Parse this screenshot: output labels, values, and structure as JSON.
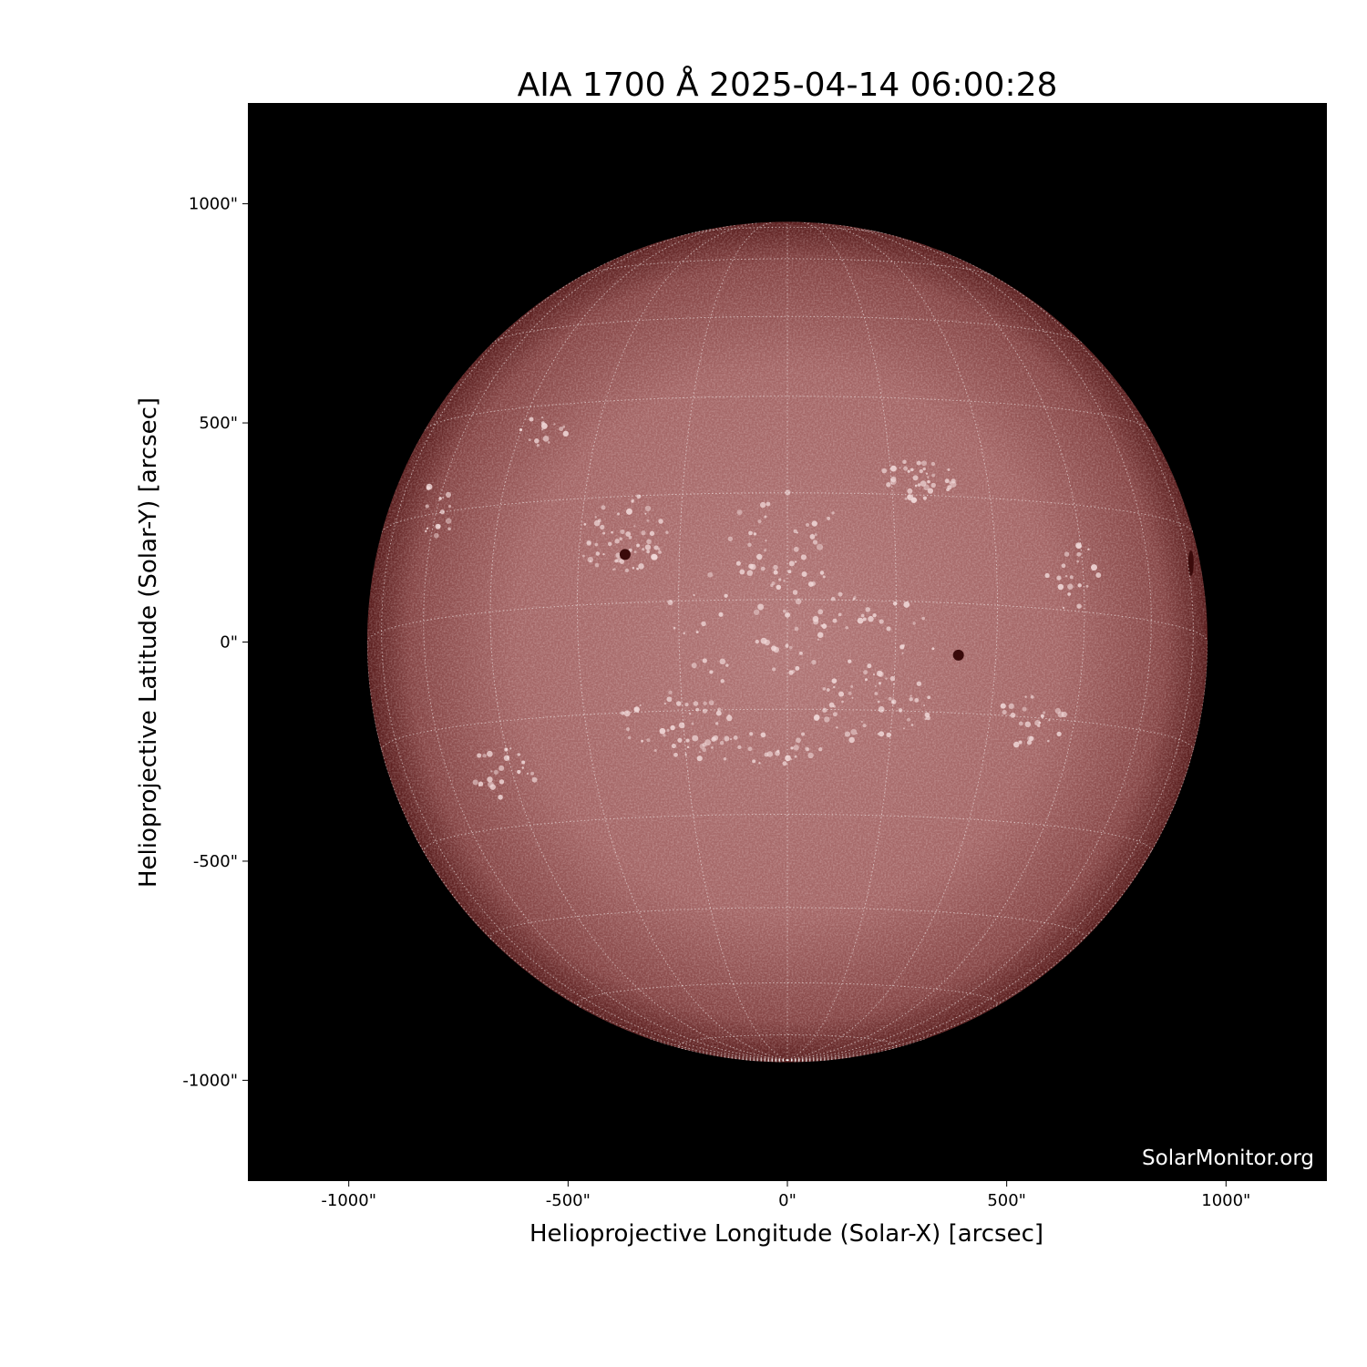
{
  "chart_data": {
    "type": "image",
    "title": "AIA 1700 Å 2025-04-14 06:00:28",
    "xlabel": "Helioprojective Longitude (Solar-X) [arcsec]",
    "ylabel": "Helioprojective Latitude (Solar-Y) [arcsec]",
    "xlim": [
      -1230,
      1230
    ],
    "ylim": [
      -1230,
      1230
    ],
    "xticks": [
      {
        "value": -1000,
        "label": "-1000\""
      },
      {
        "value": -500,
        "label": "-500\""
      },
      {
        "value": 0,
        "label": "0\""
      },
      {
        "value": 500,
        "label": "500\""
      },
      {
        "value": 1000,
        "label": "1000\""
      }
    ],
    "yticks": [
      {
        "value": 1000,
        "label": "1000\""
      },
      {
        "value": 500,
        "label": "500\""
      },
      {
        "value": 0,
        "label": "0\""
      },
      {
        "value": -500,
        "label": "-500\""
      },
      {
        "value": -1000,
        "label": "-1000\""
      }
    ],
    "solar_radius_arcsec": 958,
    "grid": "heliographic, 15° spacing, dotted white",
    "colormap": "sdoaia1700",
    "colors": {
      "disk_center": "#b07474",
      "disk_limb": "#5a1e1e",
      "background": "#000000",
      "plage": "#f0d8d8"
    },
    "watermark": "SolarMonitor.org",
    "sunspots_arcsec": [
      [
        -370,
        200
      ],
      [
        390,
        -30
      ],
      [
        920,
        180
      ]
    ]
  }
}
